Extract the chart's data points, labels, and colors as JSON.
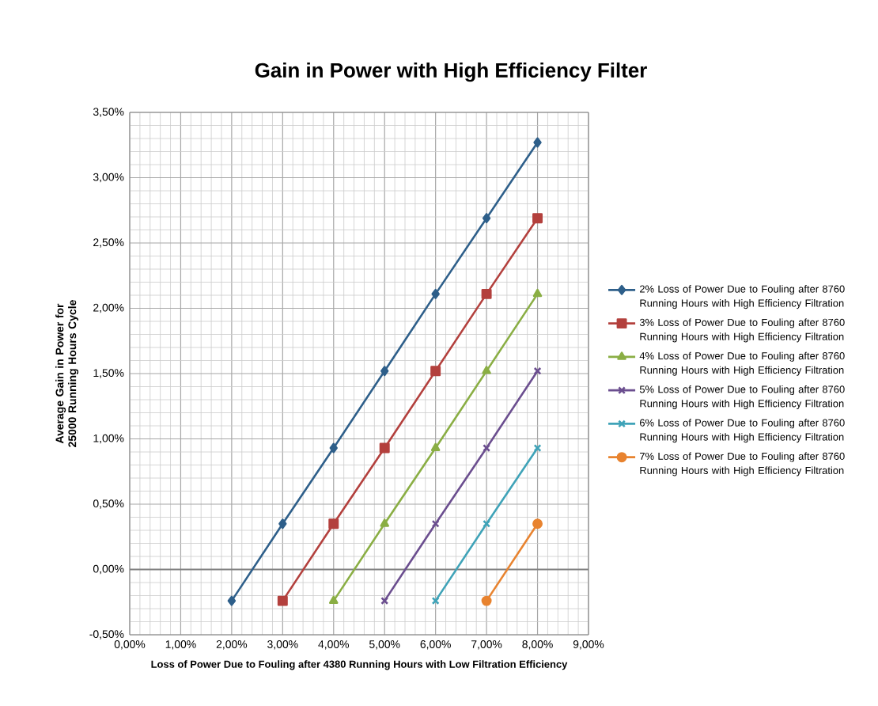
{
  "chart_data": {
    "type": "line",
    "title": "Gain in Power with High Efficiency Filter",
    "xlabel": "Loss of Power Due to Fouling after 4380 Running Hours with Low Filtration Efficiency",
    "ylabel": "Average  Gain in Power for 25000 Running Hours Cycle",
    "xlim": [
      0,
      9
    ],
    "ylim": [
      -0.5,
      3.5
    ],
    "xticks": [
      {
        "value": 0,
        "label": "0,00%"
      },
      {
        "value": 1,
        "label": "1,00%"
      },
      {
        "value": 2,
        "label": "2,00%"
      },
      {
        "value": 3,
        "label": "3,00%"
      },
      {
        "value": 4,
        "label": "4,00%"
      },
      {
        "value": 5,
        "label": "5,00%"
      },
      {
        "value": 6,
        "label": "6,00%"
      },
      {
        "value": 7,
        "label": "7,00%"
      },
      {
        "value": 8,
        "label": "8,00%"
      },
      {
        "value": 9,
        "label": "9,00%"
      }
    ],
    "yticks": [
      {
        "value": -0.5,
        "label": "-0,50%"
      },
      {
        "value": 0,
        "label": "0,00%"
      },
      {
        "value": 0.5,
        "label": "0,50%"
      },
      {
        "value": 1,
        "label": "1,00%"
      },
      {
        "value": 1.5,
        "label": "1,50%"
      },
      {
        "value": 2,
        "label": "2,00%"
      },
      {
        "value": 2.5,
        "label": "2,50%"
      },
      {
        "value": 3,
        "label": "3,00%"
      },
      {
        "value": 3.5,
        "label": "3,50%"
      }
    ],
    "grid": true,
    "legend": "right",
    "ref_lines": [
      {
        "axis": "y",
        "value": 0,
        "color": "#808080"
      }
    ],
    "series": [
      {
        "name": "2% Loss of Power Due to Fouling after 8760 Running Hours with High Efficiency Filtration",
        "color": "#2e5f8a",
        "marker": "diamond",
        "x": [
          2,
          3,
          4,
          5,
          6,
          7,
          8
        ],
        "values": [
          -0.24,
          0.35,
          0.93,
          1.52,
          2.11,
          2.69,
          3.27
        ]
      },
      {
        "name": "3% Loss of Power Due to Fouling after 8760 Running Hours with High Efficiency Filtration",
        "color": "#b3403d",
        "marker": "square",
        "x": [
          3,
          4,
          5,
          6,
          7,
          8
        ],
        "values": [
          -0.24,
          0.35,
          0.93,
          1.52,
          2.11,
          2.69
        ]
      },
      {
        "name": "4% Loss of Power Due to Fouling after 8760 Running Hours with High Efficiency Filtration",
        "color": "#8aae44",
        "marker": "triangle",
        "x": [
          4,
          5,
          6,
          7,
          8
        ],
        "values": [
          -0.24,
          0.35,
          0.93,
          1.52,
          2.11
        ]
      },
      {
        "name": "5% Loss of Power Due to Fouling after 8760 Running Hours with High Efficiency Filtration",
        "color": "#6b4e8f",
        "marker": "cross",
        "x": [
          5,
          6,
          7,
          8
        ],
        "values": [
          -0.24,
          0.35,
          0.93,
          1.52
        ]
      },
      {
        "name": "6% Loss of Power Due to Fouling after 8760 Running Hours with High Efficiency Filtration",
        "color": "#3fa3b8",
        "marker": "cross",
        "x": [
          6,
          7,
          8
        ],
        "values": [
          -0.24,
          0.35,
          0.93
        ]
      },
      {
        "name": "7% Loss of Power Due to Fouling after 8760 Running Hours with High Efficiency Filtration",
        "color": "#e8832f",
        "marker": "circle",
        "x": [
          7,
          8
        ],
        "values": [
          -0.24,
          0.35
        ]
      }
    ]
  }
}
